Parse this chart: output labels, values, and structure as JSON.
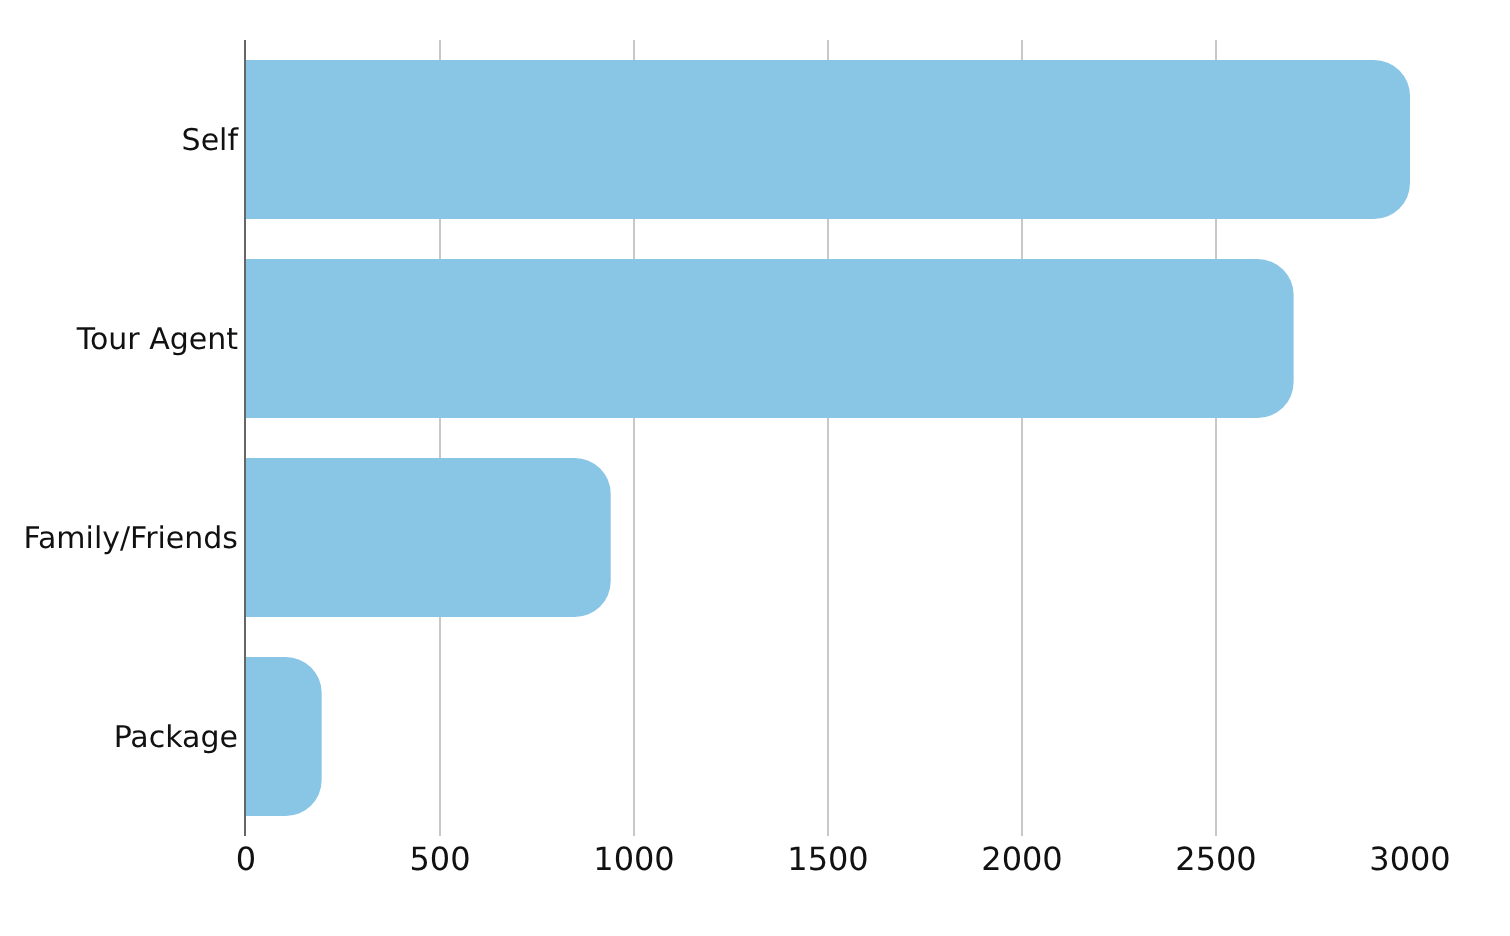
{
  "chart_data": {
    "type": "bar",
    "orientation": "horizontal",
    "categories": [
      "Self",
      "Tour Agent",
      "Family/Friends",
      "Package"
    ],
    "values": [
      3000,
      2700,
      940,
      195
    ],
    "color": "#89c5e5",
    "xlim": [
      0,
      3000
    ],
    "xticks": [
      0,
      500,
      1000,
      1500,
      2000,
      2500,
      3000
    ],
    "grid": "x",
    "legend": false
  }
}
